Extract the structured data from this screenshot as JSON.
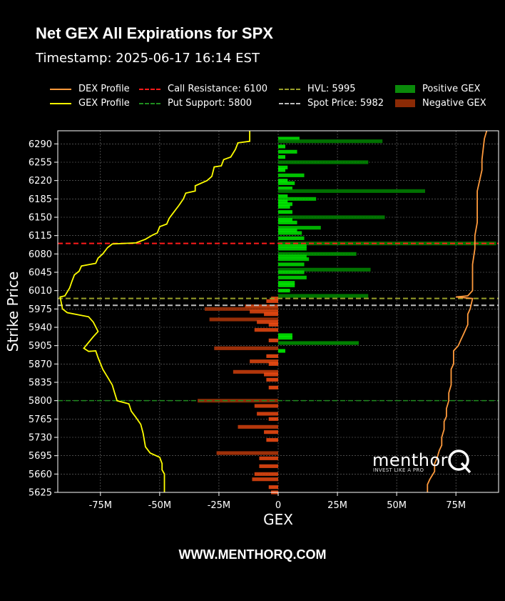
{
  "header": {
    "title": "Net GEX All Expirations for SPX",
    "subtitle": "Timestamp: 2025-06-17 16:14 EST"
  },
  "legend": [
    {
      "label": "DEX Profile",
      "color": "#ff9a3c",
      "style": "line"
    },
    {
      "label": "GEX Profile",
      "color": "#ffff00",
      "style": "line"
    },
    {
      "label": "Call Resistance: 6100",
      "color": "#ff1a1a",
      "style": "dash"
    },
    {
      "label": "Put Support: 5800",
      "color": "#1e8c1e",
      "style": "dash"
    },
    {
      "label": "HVL: 5995",
      "color": "#9aa02a",
      "style": "dash"
    },
    {
      "label": "Spot Price: 5982",
      "color": "#bdbdbd",
      "style": "dash"
    },
    {
      "label": "Positive GEX",
      "color": "#0a8a0a",
      "style": "box"
    },
    {
      "label": "Negative GEX",
      "color": "#8b2a05",
      "style": "box"
    }
  ],
  "footer": "WWW.MENTHORQ.COM",
  "logo": {
    "word": "menthor",
    "tagline": "INVEST LIKE A PRO"
  },
  "chart_data": {
    "type": "bar",
    "orientation": "horizontal",
    "xlabel": "GEX",
    "ylabel": "Strike Price",
    "xlim": [
      -93,
      93
    ],
    "ylim": [
      5625,
      6315
    ],
    "x_unit": "M",
    "x_ticks": [
      -75,
      -50,
      -25,
      0,
      25,
      50,
      75
    ],
    "x_tick_labels": [
      "-75M",
      "-50M",
      "-25M",
      "0",
      "25M",
      "50M",
      "75M"
    ],
    "y_ticks": [
      5625,
      5660,
      5695,
      5730,
      5765,
      5800,
      5835,
      5870,
      5905,
      5940,
      5975,
      6010,
      6045,
      6080,
      6115,
      6150,
      6185,
      6220,
      6255,
      6290
    ],
    "grid": true,
    "levels": {
      "call_resistance": 6100,
      "put_support": 5800,
      "hvl": 5995,
      "spot_price": 5982
    },
    "gex_bars": [
      {
        "strike": 6300,
        "value": 9
      },
      {
        "strike": 6295,
        "value": 44
      },
      {
        "strike": 6285,
        "value": 3
      },
      {
        "strike": 6275,
        "value": 8
      },
      {
        "strike": 6265,
        "value": 3
      },
      {
        "strike": 6255,
        "value": 38
      },
      {
        "strike": 6245,
        "value": 4
      },
      {
        "strike": 6240,
        "value": 3
      },
      {
        "strike": 6230,
        "value": 11
      },
      {
        "strike": 6220,
        "value": 4
      },
      {
        "strike": 6215,
        "value": 7
      },
      {
        "strike": 6205,
        "value": 6
      },
      {
        "strike": 6200,
        "value": 62
      },
      {
        "strike": 6190,
        "value": 4
      },
      {
        "strike": 6185,
        "value": 16
      },
      {
        "strike": 6180,
        "value": 4
      },
      {
        "strike": 6175,
        "value": 6
      },
      {
        "strike": 6170,
        "value": 5
      },
      {
        "strike": 6160,
        "value": 6
      },
      {
        "strike": 6150,
        "value": 45
      },
      {
        "strike": 6145,
        "value": 6
      },
      {
        "strike": 6140,
        "value": 8
      },
      {
        "strike": 6130,
        "value": 18
      },
      {
        "strike": 6125,
        "value": 8
      },
      {
        "strike": 6120,
        "value": 10
      },
      {
        "strike": 6110,
        "value": 11
      },
      {
        "strike": 6100,
        "value": 92
      },
      {
        "strike": 6095,
        "value": 12
      },
      {
        "strike": 6090,
        "value": 12
      },
      {
        "strike": 6080,
        "value": 33
      },
      {
        "strike": 6075,
        "value": 12
      },
      {
        "strike": 6070,
        "value": 13
      },
      {
        "strike": 6060,
        "value": 11
      },
      {
        "strike": 6050,
        "value": 39
      },
      {
        "strike": 6045,
        "value": 11
      },
      {
        "strike": 6035,
        "value": 12
      },
      {
        "strike": 6025,
        "value": 7
      },
      {
        "strike": 6020,
        "value": 7
      },
      {
        "strike": 6010,
        "value": 5
      },
      {
        "strike": 6000,
        "value": 38
      },
      {
        "strike": 5995,
        "value": -3
      },
      {
        "strike": 5990,
        "value": -5
      },
      {
        "strike": 5980,
        "value": -14
      },
      {
        "strike": 5975,
        "value": -31
      },
      {
        "strike": 5970,
        "value": -12
      },
      {
        "strike": 5965,
        "value": -6
      },
      {
        "strike": 5955,
        "value": -29
      },
      {
        "strike": 5950,
        "value": -9
      },
      {
        "strike": 5945,
        "value": -4
      },
      {
        "strike": 5935,
        "value": -10
      },
      {
        "strike": 5925,
        "value": 6
      },
      {
        "strike": 5920,
        "value": 6
      },
      {
        "strike": 5915,
        "value": -4
      },
      {
        "strike": 5910,
        "value": 34
      },
      {
        "strike": 5900,
        "value": -27
      },
      {
        "strike": 5895,
        "value": 3
      },
      {
        "strike": 5885,
        "value": -5
      },
      {
        "strike": 5875,
        "value": -12
      },
      {
        "strike": 5870,
        "value": -4
      },
      {
        "strike": 5855,
        "value": -19
      },
      {
        "strike": 5850,
        "value": -6
      },
      {
        "strike": 5840,
        "value": -5
      },
      {
        "strike": 5825,
        "value": -4
      },
      {
        "strike": 5800,
        "value": -34
      },
      {
        "strike": 5790,
        "value": -10
      },
      {
        "strike": 5775,
        "value": -9
      },
      {
        "strike": 5765,
        "value": -4
      },
      {
        "strike": 5750,
        "value": -17
      },
      {
        "strike": 5740,
        "value": -6
      },
      {
        "strike": 5725,
        "value": -5
      },
      {
        "strike": 5700,
        "value": -26
      },
      {
        "strike": 5690,
        "value": -8
      },
      {
        "strike": 5675,
        "value": -8
      },
      {
        "strike": 5660,
        "value": -10
      },
      {
        "strike": 5650,
        "value": -11
      },
      {
        "strike": 5635,
        "value": -4
      },
      {
        "strike": 5625,
        "value": -3
      }
    ],
    "gex_profile": [
      [
        -12,
        6315
      ],
      [
        -12,
        6295
      ],
      [
        -17,
        6292
      ],
      [
        -18,
        6280
      ],
      [
        -20,
        6265
      ],
      [
        -23,
        6260
      ],
      [
        -24,
        6248
      ],
      [
        -27,
        6246
      ],
      [
        -28,
        6228
      ],
      [
        -30,
        6220
      ],
      [
        -35,
        6210
      ],
      [
        -35,
        6200
      ],
      [
        -39,
        6196
      ],
      [
        -40,
        6185
      ],
      [
        -42,
        6172
      ],
      [
        -44,
        6160
      ],
      [
        -46,
        6148
      ],
      [
        -47,
        6137
      ],
      [
        -50,
        6132
      ],
      [
        -51,
        6120
      ],
      [
        -53,
        6116
      ],
      [
        -56,
        6108
      ],
      [
        -60,
        6101
      ],
      [
        -70,
        6099
      ],
      [
        -72,
        6092
      ],
      [
        -74,
        6080
      ],
      [
        -76,
        6072
      ],
      [
        -77,
        6062
      ],
      [
        -83,
        6057
      ],
      [
        -84,
        6047
      ],
      [
        -86,
        6040
      ],
      [
        -87,
        6028
      ],
      [
        -88,
        6015
      ],
      [
        -90,
        6000
      ],
      [
        -92,
        5998
      ],
      [
        -91,
        5975
      ],
      [
        -89,
        5968
      ],
      [
        -80,
        5960
      ],
      [
        -78,
        5950
      ],
      [
        -76,
        5932
      ],
      [
        -78,
        5922
      ],
      [
        -82,
        5900
      ],
      [
        -80,
        5894
      ],
      [
        -77,
        5895
      ],
      [
        -76,
        5882
      ],
      [
        -74,
        5860
      ],
      [
        -72,
        5845
      ],
      [
        -70,
        5830
      ],
      [
        -69,
        5815
      ],
      [
        -68,
        5800
      ],
      [
        -63,
        5794
      ],
      [
        -62,
        5780
      ],
      [
        -60,
        5768
      ],
      [
        -58,
        5755
      ],
      [
        -57,
        5738
      ],
      [
        -56,
        5712
      ],
      [
        -54,
        5700
      ],
      [
        -50,
        5692
      ],
      [
        -49,
        5680
      ],
      [
        -49,
        5668
      ],
      [
        -48,
        5660
      ],
      [
        -48,
        5625
      ]
    ],
    "dex_profile": [
      [
        88,
        6315
      ],
      [
        87,
        6300
      ],
      [
        86,
        6260
      ],
      [
        86,
        6240
      ],
      [
        85,
        6220
      ],
      [
        84,
        6200
      ],
      [
        84,
        6170
      ],
      [
        84,
        6140
      ],
      [
        83,
        6115
      ],
      [
        83,
        6090
      ],
      [
        82,
        6060
      ],
      [
        82,
        6030
      ],
      [
        82,
        6010
      ],
      [
        80,
        6000
      ],
      [
        75,
        5998
      ],
      [
        82,
        5995
      ],
      [
        81,
        5975
      ],
      [
        80,
        5965
      ],
      [
        80,
        5945
      ],
      [
        79,
        5935
      ],
      [
        78,
        5925
      ],
      [
        77,
        5915
      ],
      [
        76,
        5905
      ],
      [
        74,
        5895
      ],
      [
        74,
        5880
      ],
      [
        74,
        5870
      ],
      [
        73,
        5860
      ],
      [
        73,
        5845
      ],
      [
        73,
        5830
      ],
      [
        72,
        5815
      ],
      [
        72,
        5800
      ],
      [
        71,
        5785
      ],
      [
        71,
        5770
      ],
      [
        70,
        5760
      ],
      [
        70,
        5745
      ],
      [
        69,
        5730
      ],
      [
        69,
        5715
      ],
      [
        68,
        5705
      ],
      [
        67,
        5690
      ],
      [
        66,
        5680
      ],
      [
        66,
        5665
      ],
      [
        64,
        5650
      ],
      [
        63,
        5640
      ],
      [
        63,
        5625
      ]
    ]
  }
}
